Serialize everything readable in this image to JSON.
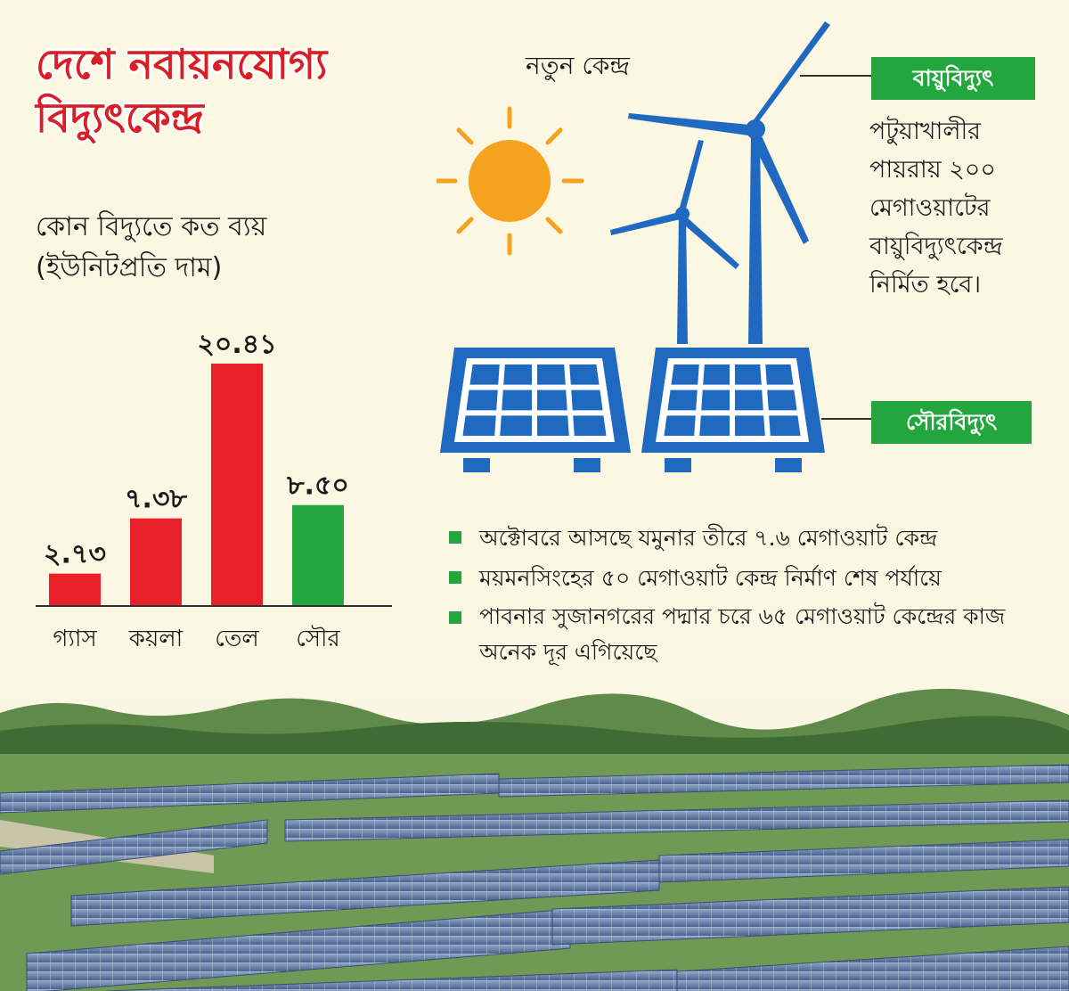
{
  "title": "দেশে নবায়নযোগ্য বিদ্যুৎকেন্দ্র",
  "subtitle": {
    "line1": "কোন বিদ্যুতে কত ব্যয়",
    "line2": "(ইউনিটপ্রতি দাম)"
  },
  "colors": {
    "red": "#e8202a",
    "green": "#23a63e",
    "blue": "#1f69c0",
    "sun": "#f5a21e"
  },
  "chart_data": {
    "type": "bar",
    "categories": [
      "গ্যাস",
      "কয়লা",
      "তেল",
      "সৌর"
    ],
    "values": [
      2.73,
      7.38,
      20.41,
      8.5
    ],
    "value_labels": [
      "২.৭৩",
      "৭.৩৮",
      "২০.৪১",
      "৮.৫০"
    ],
    "bar_colors": [
      "#e8202a",
      "#e8202a",
      "#e8202a",
      "#23a63e"
    ],
    "ylim": [
      0,
      20.41
    ],
    "grid": false,
    "legend": "none"
  },
  "illustration": {
    "heading": "নতুন কেন্দ্র",
    "wind_tag": "বায়ুবিদ্যুৎ",
    "wind_description": "পটুয়াখালীর পায়রায় ২০০ মেগাওয়াটের বায়ুবিদ্যুৎকেন্দ্র নির্মিত হবে।",
    "solar_tag": "সৌরবিদ্যুৎ"
  },
  "bullets": [
    "অক্টোবরে আসছে যমুনার তীরে ৭.৬ মেগাওয়াট কেন্দ্র",
    "ময়মনসিংহের ৫০ মেগাওয়াট কেন্দ্র নির্মাণ শেষ পর্যায়ে",
    "পাবনার সুজানগরের পদ্মার চরে ৬৫ মেগাওয়াট কেন্দ্রের কাজ অনেক দূর এগিয়েছে"
  ]
}
